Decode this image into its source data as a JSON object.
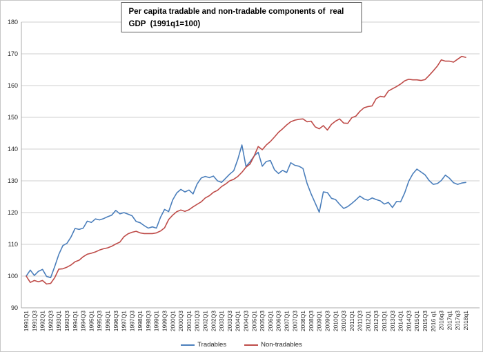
{
  "title": "Per capita tradable and non-tradable components of  real GDP  (1991q1=100)",
  "legend": [
    {
      "label": "Tradables",
      "color": "#4a7ebb"
    },
    {
      "label": "Non-tradables",
      "color": "#be4b48"
    }
  ],
  "colors": {
    "tradables": "#4a7ebb",
    "non_tradables": "#be4b48",
    "gridline": "#cfcfcf",
    "axis_line": "#ababab",
    "tick_text": "#262626",
    "title_border": "#595959",
    "background": "#ffffff"
  },
  "chart_data": {
    "type": "line",
    "title": "Per capita tradable and non-tradable components of  real GDP  (1991q1=100)",
    "xlabel": "",
    "ylabel": "",
    "ylim": [
      90,
      180
    ],
    "y_ticks": [
      90,
      100,
      110,
      120,
      130,
      140,
      150,
      160,
      170,
      180
    ],
    "grid": "horizontal",
    "legend_position": "bottom-center",
    "x_frequency": "quarterly 1991Q1 to 2018Q1, tick labels every second quarter",
    "x_tick_labels": [
      "1991Q1",
      "1991Q3",
      "1992Q1",
      "1992Q3",
      "1993Q1",
      "1993Q3",
      "1994Q1",
      "1994Q3",
      "1995Q1",
      "1995Q3",
      "1996Q1",
      "1996Q3",
      "1997Q1",
      "1997Q3",
      "1998Q1",
      "1998Q3",
      "1999Q1",
      "1999Q3",
      "2000Q1",
      "2000Q3",
      "2001Q1",
      "2001Q3",
      "2002Q1",
      "2002Q3",
      "2003Q1",
      "2003Q3",
      "2004Q1",
      "2004Q3",
      "2005Q1",
      "2005Q3",
      "2006Q1",
      "2006Q3",
      "2007Q1",
      "2007Q3",
      "2008Q1",
      "2008Q3",
      "2009Q1",
      "2009Q3",
      "2010Q1",
      "2010Q3",
      "2011Q1",
      "2011Q3",
      "2012Q1",
      "2012Q3",
      "2013Q1",
      "2013Q3",
      "2014Q1",
      "2014Q3",
      "2015Q1",
      "2015Q3",
      "2016 q1",
      "2016q3",
      "2017q1",
      "2017q3",
      "2018q1"
    ],
    "series": [
      {
        "name": "Tradables",
        "color": "#4a7ebb",
        "values": [
          100.0,
          101.9,
          100.2,
          101.5,
          102.1,
          99.9,
          99.5,
          103.0,
          106.8,
          109.6,
          110.3,
          112.3,
          115.0,
          114.7,
          115.1,
          117.3,
          116.9,
          118.0,
          117.7,
          118.1,
          118.7,
          119.2,
          120.7,
          119.6,
          120.0,
          119.5,
          119.0,
          117.2,
          116.8,
          115.9,
          115.1,
          115.5,
          115.1,
          118.5,
          121.0,
          120.3,
          124.0,
          126.2,
          127.3,
          126.5,
          127.1,
          125.9,
          129.0,
          130.9,
          131.4,
          131.0,
          131.5,
          130.0,
          129.5,
          130.8,
          132.1,
          133.2,
          136.8,
          141.3,
          134.5,
          136.0,
          137.8,
          139.0,
          134.6,
          136.1,
          136.4,
          133.5,
          132.3,
          133.3,
          132.6,
          135.7,
          134.9,
          134.6,
          133.9,
          129.2,
          125.9,
          123.0,
          120.1,
          126.5,
          126.3,
          124.5,
          124.1,
          122.6,
          121.3,
          121.9,
          122.9,
          124.0,
          125.2,
          124.3,
          123.9,
          124.6,
          124.1,
          123.7,
          122.7,
          123.2,
          121.6,
          123.5,
          123.4,
          126.2,
          129.9,
          132.2,
          133.7,
          132.8,
          131.9,
          130.1,
          128.9,
          129.1,
          130.1,
          131.8,
          130.8,
          129.4,
          128.9,
          129.3,
          129.5
        ]
      },
      {
        "name": "Non-tradables",
        "color": "#be4b48",
        "values": [
          100.0,
          98.0,
          98.6,
          98.2,
          98.6,
          97.5,
          97.7,
          99.5,
          102.2,
          102.3,
          102.8,
          103.5,
          104.5,
          105.0,
          106.1,
          106.9,
          107.2,
          107.6,
          108.2,
          108.6,
          108.9,
          109.4,
          110.1,
          110.7,
          112.4,
          113.3,
          113.8,
          114.1,
          113.6,
          113.4,
          113.4,
          113.4,
          113.6,
          114.2,
          115.2,
          117.8,
          119.2,
          120.3,
          120.8,
          120.4,
          120.9,
          121.8,
          122.6,
          123.4,
          124.6,
          125.3,
          126.4,
          127.0,
          128.2,
          129.0,
          130.0,
          130.5,
          131.4,
          132.7,
          134.3,
          135.3,
          137.8,
          140.8,
          139.8,
          141.3,
          142.4,
          143.8,
          145.3,
          146.4,
          147.6,
          148.6,
          149.1,
          149.4,
          149.5,
          148.6,
          148.8,
          147.0,
          146.4,
          147.4,
          146.0,
          147.8,
          148.8,
          149.5,
          148.2,
          148.1,
          149.9,
          150.4,
          151.9,
          153.0,
          153.4,
          153.6,
          155.9,
          156.6,
          156.4,
          158.3,
          159.0,
          159.7,
          160.5,
          161.5,
          162.0,
          161.8,
          161.8,
          161.6,
          161.9,
          163.2,
          164.6,
          166.1,
          168.1,
          167.7,
          167.7,
          167.4,
          168.3,
          169.2,
          168.9
        ]
      }
    ]
  }
}
